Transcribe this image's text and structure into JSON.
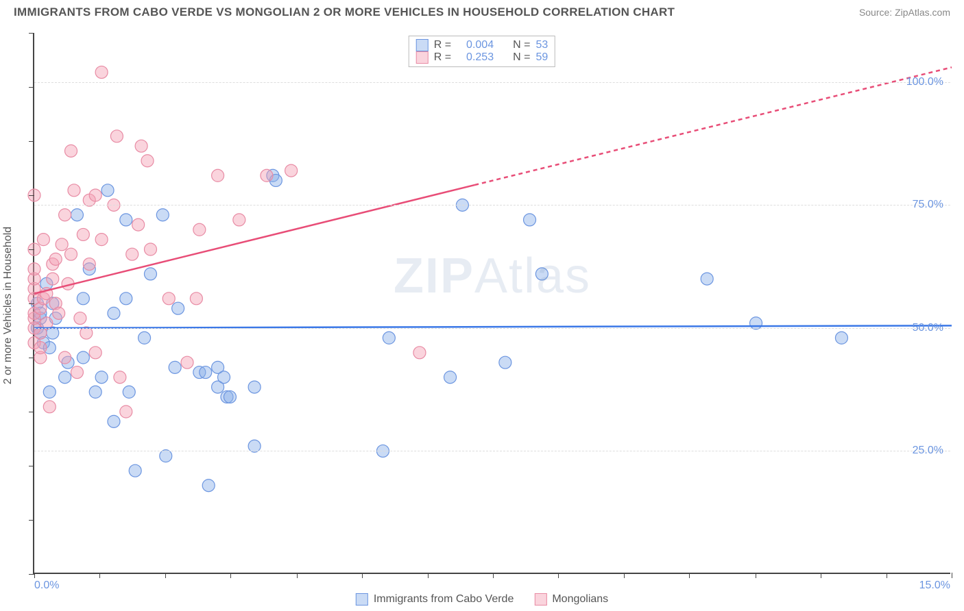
{
  "header": {
    "title": "IMMIGRANTS FROM CABO VERDE VS MONGOLIAN 2 OR MORE VEHICLES IN HOUSEHOLD CORRELATION CHART",
    "source": "Source: ZipAtlas.com"
  },
  "watermark": {
    "part1": "ZIP",
    "part2": "Atlas"
  },
  "axes": {
    "ylabel": "2 or more Vehicles in Household",
    "xlim": [
      0,
      15
    ],
    "ylim": [
      0,
      110
    ],
    "x_ticks_positions": [
      0,
      1.07,
      2.14,
      3.21,
      4.29,
      5.36,
      6.43,
      7.5,
      8.57,
      9.64,
      10.71,
      11.79,
      12.86,
      13.93,
      15
    ],
    "x_tick_labels": [
      {
        "value": 0,
        "text": "0.0%",
        "class": "left"
      },
      {
        "value": 15,
        "text": "15.0%",
        "class": "right"
      }
    ],
    "y_gridlines": [
      25,
      50,
      75,
      100
    ],
    "y_tick_labels": [
      {
        "value": 25,
        "text": "25.0%"
      },
      {
        "value": 50,
        "text": "50.0%"
      },
      {
        "value": 75,
        "text": "75.0%"
      },
      {
        "value": 100,
        "text": "100.0%"
      }
    ],
    "y_ticks_minor": [
      0,
      11,
      22,
      33,
      44,
      55,
      66,
      77,
      88,
      99,
      110
    ]
  },
  "colors": {
    "series_a_fill": "rgba(137,175,232,0.45)",
    "series_a_stroke": "#6b95e0",
    "series_b_fill": "rgba(244,160,180,0.45)",
    "series_b_stroke": "#e88ba4",
    "line_a": "#3b78e7",
    "line_b": "#e84d77",
    "axis": "#444444",
    "grid": "#dddddd",
    "text": "#555555",
    "accent_text": "#6b95e0",
    "background": "#ffffff"
  },
  "legend_top": {
    "rows": [
      {
        "swatch": "a",
        "r_label": "R =",
        "r": "0.004",
        "n_label": "N =",
        "n": "53"
      },
      {
        "swatch": "b",
        "r_label": "R =",
        "r": "0.253",
        "n_label": "N =",
        "n": "59"
      }
    ]
  },
  "legend_bottom": {
    "items": [
      {
        "swatch": "a",
        "label": "Immigrants from Cabo Verde"
      },
      {
        "swatch": "b",
        "label": "Mongolians"
      }
    ]
  },
  "chart": {
    "type": "scatter",
    "marker_radius": 9,
    "marker_stroke_width": 1.2,
    "trend_line_width": 2.5,
    "series": [
      {
        "id": "a",
        "name": "Immigrants from Cabo Verde",
        "trend": {
          "x1": 0,
          "y1": 50.0,
          "x2": 15,
          "y2": 50.5,
          "dashed_from_x": null
        },
        "points": [
          [
            0.05,
            50
          ],
          [
            0.05,
            55
          ],
          [
            0.1,
            49
          ],
          [
            0.1,
            52
          ],
          [
            0.1,
            53
          ],
          [
            0.15,
            47
          ],
          [
            0.2,
            59
          ],
          [
            0.25,
            46
          ],
          [
            0.25,
            37
          ],
          [
            0.3,
            55
          ],
          [
            0.3,
            49
          ],
          [
            0.35,
            52
          ],
          [
            0.5,
            40
          ],
          [
            0.55,
            43
          ],
          [
            0.7,
            73
          ],
          [
            0.8,
            56
          ],
          [
            0.8,
            44
          ],
          [
            0.9,
            62
          ],
          [
            1.0,
            37
          ],
          [
            1.1,
            40
          ],
          [
            1.2,
            78
          ],
          [
            1.3,
            31
          ],
          [
            1.3,
            53
          ],
          [
            1.5,
            72
          ],
          [
            1.5,
            56
          ],
          [
            1.55,
            37
          ],
          [
            1.65,
            21
          ],
          [
            1.8,
            48
          ],
          [
            1.9,
            61
          ],
          [
            2.1,
            73
          ],
          [
            2.15,
            24
          ],
          [
            2.3,
            42
          ],
          [
            2.35,
            54
          ],
          [
            2.7,
            41
          ],
          [
            2.8,
            41
          ],
          [
            2.85,
            18
          ],
          [
            3.0,
            42
          ],
          [
            3.0,
            38
          ],
          [
            3.1,
            40
          ],
          [
            3.15,
            36
          ],
          [
            3.2,
            36
          ],
          [
            3.6,
            26
          ],
          [
            3.6,
            38
          ],
          [
            3.9,
            81
          ],
          [
            3.95,
            80
          ],
          [
            5.7,
            25
          ],
          [
            5.8,
            48
          ],
          [
            6.8,
            40
          ],
          [
            7.0,
            75
          ],
          [
            7.7,
            43
          ],
          [
            8.1,
            72
          ],
          [
            8.3,
            61
          ],
          [
            11.0,
            60
          ],
          [
            11.8,
            51
          ],
          [
            13.2,
            48
          ]
        ]
      },
      {
        "id": "b",
        "name": "Mongolians",
        "trend": {
          "x1": 0,
          "y1": 57.0,
          "x2": 15,
          "y2": 103.0,
          "dashed_from_x": 7.2
        },
        "points": [
          [
            0.0,
            47
          ],
          [
            0.0,
            50
          ],
          [
            0.0,
            52
          ],
          [
            0.0,
            53
          ],
          [
            0.0,
            56
          ],
          [
            0.0,
            58
          ],
          [
            0.0,
            60
          ],
          [
            0.0,
            62
          ],
          [
            0.0,
            66
          ],
          [
            0.0,
            77
          ],
          [
            0.1,
            44
          ],
          [
            0.1,
            46
          ],
          [
            0.1,
            49
          ],
          [
            0.1,
            54
          ],
          [
            0.15,
            56
          ],
          [
            0.15,
            68
          ],
          [
            0.2,
            51
          ],
          [
            0.2,
            57
          ],
          [
            0.25,
            34
          ],
          [
            0.3,
            60
          ],
          [
            0.3,
            63
          ],
          [
            0.35,
            64
          ],
          [
            0.35,
            55
          ],
          [
            0.4,
            53
          ],
          [
            0.45,
            67
          ],
          [
            0.5,
            44
          ],
          [
            0.5,
            73
          ],
          [
            0.55,
            59
          ],
          [
            0.6,
            65
          ],
          [
            0.6,
            86
          ],
          [
            0.65,
            78
          ],
          [
            0.7,
            41
          ],
          [
            0.75,
            52
          ],
          [
            0.8,
            69
          ],
          [
            0.85,
            49
          ],
          [
            0.9,
            63
          ],
          [
            0.9,
            76
          ],
          [
            1.0,
            77
          ],
          [
            1.0,
            45
          ],
          [
            1.1,
            68
          ],
          [
            1.1,
            102
          ],
          [
            1.3,
            75
          ],
          [
            1.35,
            89
          ],
          [
            1.4,
            40
          ],
          [
            1.5,
            33
          ],
          [
            1.6,
            65
          ],
          [
            1.7,
            71
          ],
          [
            1.75,
            87
          ],
          [
            1.85,
            84
          ],
          [
            1.9,
            66
          ],
          [
            2.2,
            56
          ],
          [
            2.5,
            43
          ],
          [
            2.65,
            56
          ],
          [
            2.7,
            70
          ],
          [
            3.0,
            81
          ],
          [
            3.35,
            72
          ],
          [
            3.8,
            81
          ],
          [
            4.2,
            82
          ],
          [
            6.3,
            45
          ]
        ]
      }
    ]
  }
}
